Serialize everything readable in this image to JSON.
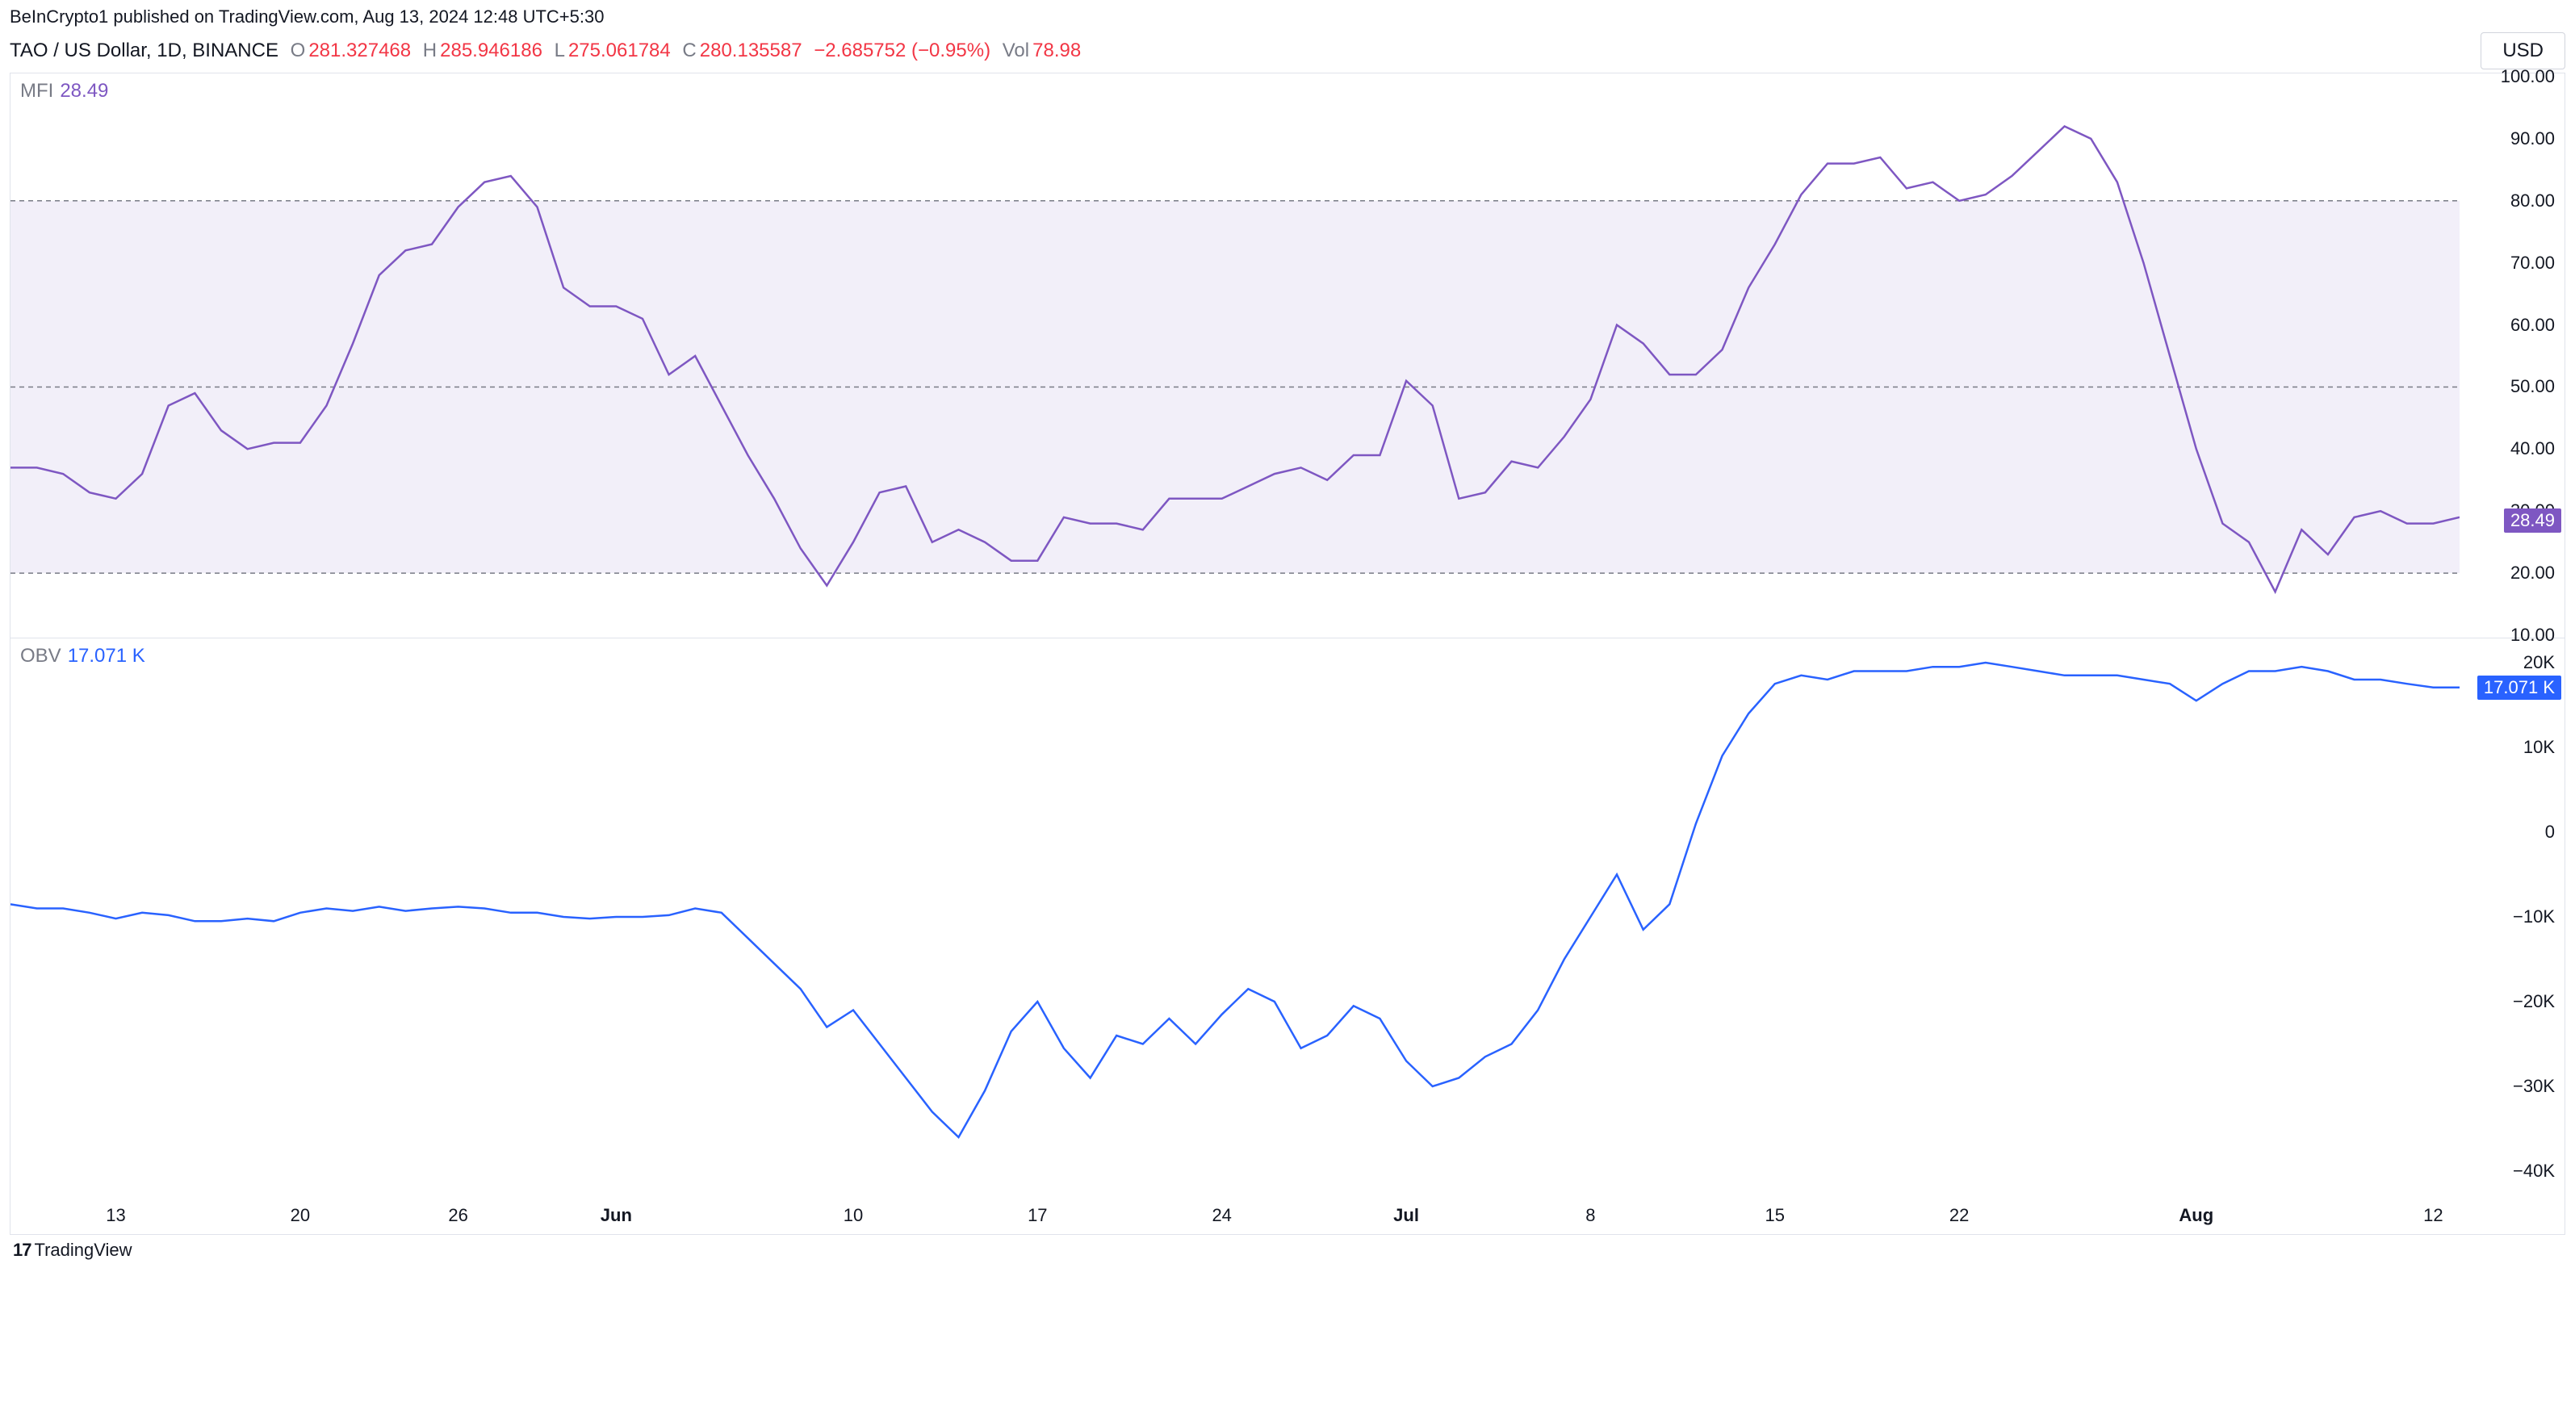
{
  "header": {
    "published_text": "BeInCrypto1 published on TradingView.com, Aug 13, 2024 12:48 UTC+5:30"
  },
  "ticker": {
    "symbol": "TAO / US Dollar, 1D, BINANCE",
    "open_label": "O",
    "open": "281.327468",
    "high_label": "H",
    "high": "285.946186",
    "low_label": "L",
    "low": "275.061784",
    "close_label": "C",
    "close": "280.135587",
    "change": "−2.685752 (−0.95%)",
    "vol_label": "Vol",
    "vol": "78.98",
    "currency": "USD",
    "ohlc_color": "#f23645",
    "label_color": "#787b86"
  },
  "mfi_pane": {
    "label": "MFI",
    "value": "28.49",
    "value_color": "#7e57c2",
    "line_color": "#7e57c2",
    "band_fill": "#f2eff9",
    "band_line_color": "#787b86",
    "y_min": 10,
    "y_max": 100,
    "y_ticks": [
      100,
      90,
      80,
      70,
      60,
      50,
      40,
      30,
      20,
      10
    ],
    "y_tick_labels": [
      "100.00",
      "90.00",
      "80.00",
      "70.00",
      "60.00",
      "50.00",
      "40.00",
      "30.00",
      "20.00",
      "10.00"
    ],
    "bands": {
      "upper": 80,
      "mid": 50,
      "lower": 20
    },
    "current_badge": "28.49",
    "series": [
      [
        0,
        37
      ],
      [
        1,
        37
      ],
      [
        2,
        36
      ],
      [
        3,
        33
      ],
      [
        4,
        32
      ],
      [
        5,
        36
      ],
      [
        6,
        47
      ],
      [
        7,
        49
      ],
      [
        8,
        43
      ],
      [
        9,
        40
      ],
      [
        10,
        41
      ],
      [
        11,
        41
      ],
      [
        12,
        47
      ],
      [
        13,
        57
      ],
      [
        14,
        68
      ],
      [
        15,
        72
      ],
      [
        16,
        73
      ],
      [
        17,
        79
      ],
      [
        18,
        83
      ],
      [
        19,
        84
      ],
      [
        20,
        79
      ],
      [
        21,
        66
      ],
      [
        22,
        63
      ],
      [
        23,
        63
      ],
      [
        24,
        61
      ],
      [
        25,
        52
      ],
      [
        26,
        55
      ],
      [
        27,
        47
      ],
      [
        28,
        39
      ],
      [
        29,
        32
      ],
      [
        30,
        24
      ],
      [
        31,
        18
      ],
      [
        32,
        25
      ],
      [
        33,
        33
      ],
      [
        34,
        34
      ],
      [
        35,
        25
      ],
      [
        36,
        27
      ],
      [
        37,
        25
      ],
      [
        38,
        22
      ],
      [
        39,
        22
      ],
      [
        40,
        29
      ],
      [
        41,
        28
      ],
      [
        42,
        28
      ],
      [
        43,
        27
      ],
      [
        44,
        32
      ],
      [
        45,
        32
      ],
      [
        46,
        32
      ],
      [
        47,
        34
      ],
      [
        48,
        36
      ],
      [
        49,
        37
      ],
      [
        50,
        35
      ],
      [
        51,
        39
      ],
      [
        52,
        39
      ],
      [
        53,
        51
      ],
      [
        54,
        47
      ],
      [
        55,
        32
      ],
      [
        56,
        33
      ],
      [
        57,
        38
      ],
      [
        58,
        37
      ],
      [
        59,
        42
      ],
      [
        60,
        48
      ],
      [
        61,
        60
      ],
      [
        62,
        57
      ],
      [
        63,
        52
      ],
      [
        64,
        52
      ],
      [
        65,
        56
      ],
      [
        66,
        66
      ],
      [
        67,
        73
      ],
      [
        68,
        81
      ],
      [
        69,
        86
      ],
      [
        70,
        86
      ],
      [
        71,
        87
      ],
      [
        72,
        82
      ],
      [
        73,
        83
      ],
      [
        74,
        80
      ],
      [
        75,
        81
      ],
      [
        76,
        84
      ],
      [
        77,
        88
      ],
      [
        78,
        92
      ],
      [
        79,
        90
      ],
      [
        80,
        83
      ],
      [
        81,
        70
      ],
      [
        82,
        55
      ],
      [
        83,
        40
      ],
      [
        84,
        28
      ],
      [
        85,
        25
      ],
      [
        86,
        17
      ],
      [
        87,
        27
      ],
      [
        88,
        23
      ],
      [
        89,
        29
      ],
      [
        90,
        30
      ],
      [
        91,
        28
      ],
      [
        92,
        28
      ],
      [
        93,
        29
      ]
    ]
  },
  "obv_pane": {
    "label": "OBV",
    "value": "17.071 K",
    "value_color": "#2962ff",
    "line_color": "#2962ff",
    "y_min": -40000,
    "y_max": 20000,
    "y_ticks": [
      20000,
      10000,
      0,
      -10000,
      -20000,
      -30000,
      -40000
    ],
    "y_tick_labels": [
      "20K",
      "10K",
      "0",
      "−10K",
      "−20K",
      "−30K",
      "−40K"
    ],
    "current_badge": "17.071 K",
    "series": [
      [
        0,
        -8500
      ],
      [
        1,
        -9000
      ],
      [
        2,
        -9000
      ],
      [
        3,
        -9500
      ],
      [
        4,
        -10200
      ],
      [
        5,
        -9500
      ],
      [
        6,
        -9800
      ],
      [
        7,
        -10500
      ],
      [
        8,
        -10500
      ],
      [
        9,
        -10200
      ],
      [
        10,
        -10500
      ],
      [
        11,
        -9500
      ],
      [
        12,
        -9000
      ],
      [
        13,
        -9300
      ],
      [
        14,
        -8800
      ],
      [
        15,
        -9300
      ],
      [
        16,
        -9000
      ],
      [
        17,
        -8800
      ],
      [
        18,
        -9000
      ],
      [
        19,
        -9500
      ],
      [
        20,
        -9500
      ],
      [
        21,
        -10000
      ],
      [
        22,
        -10200
      ],
      [
        23,
        -10000
      ],
      [
        24,
        -10000
      ],
      [
        25,
        -9800
      ],
      [
        26,
        -9000
      ],
      [
        27,
        -9500
      ],
      [
        28,
        -12500
      ],
      [
        29,
        -15500
      ],
      [
        30,
        -18500
      ],
      [
        31,
        -23000
      ],
      [
        32,
        -21000
      ],
      [
        33,
        -25000
      ],
      [
        34,
        -29000
      ],
      [
        35,
        -33000
      ],
      [
        36,
        -36000
      ],
      [
        37,
        -30500
      ],
      [
        38,
        -23500
      ],
      [
        39,
        -20000
      ],
      [
        40,
        -25500
      ],
      [
        41,
        -29000
      ],
      [
        42,
        -24000
      ],
      [
        43,
        -25000
      ],
      [
        44,
        -22000
      ],
      [
        45,
        -25000
      ],
      [
        46,
        -21500
      ],
      [
        47,
        -18500
      ],
      [
        48,
        -20000
      ],
      [
        49,
        -25500
      ],
      [
        50,
        -24000
      ],
      [
        51,
        -20500
      ],
      [
        52,
        -22000
      ],
      [
        53,
        -27000
      ],
      [
        54,
        -30000
      ],
      [
        55,
        -29000
      ],
      [
        56,
        -26500
      ],
      [
        57,
        -25000
      ],
      [
        58,
        -21000
      ],
      [
        59,
        -15000
      ],
      [
        60,
        -10000
      ],
      [
        61,
        -5000
      ],
      [
        62,
        -11500
      ],
      [
        63,
        -8500
      ],
      [
        64,
        1000
      ],
      [
        65,
        9000
      ],
      [
        66,
        14000
      ],
      [
        67,
        17500
      ],
      [
        68,
        18500
      ],
      [
        69,
        18000
      ],
      [
        70,
        19000
      ],
      [
        71,
        19000
      ],
      [
        72,
        19000
      ],
      [
        73,
        19500
      ],
      [
        74,
        19500
      ],
      [
        75,
        20000
      ],
      [
        76,
        19500
      ],
      [
        77,
        19000
      ],
      [
        78,
        18500
      ],
      [
        79,
        18500
      ],
      [
        80,
        18500
      ],
      [
        81,
        18000
      ],
      [
        82,
        17500
      ],
      [
        83,
        15500
      ],
      [
        84,
        17500
      ],
      [
        85,
        19000
      ],
      [
        86,
        19000
      ],
      [
        87,
        19500
      ],
      [
        88,
        19000
      ],
      [
        89,
        18000
      ],
      [
        90,
        18000
      ],
      [
        91,
        17500
      ],
      [
        92,
        17071
      ],
      [
        93,
        17071
      ]
    ]
  },
  "x_axis": {
    "ticks": [
      {
        "pos": 4,
        "label": "13",
        "bold": false
      },
      {
        "pos": 11,
        "label": "20",
        "bold": false
      },
      {
        "pos": 17,
        "label": "26",
        "bold": false
      },
      {
        "pos": 23,
        "label": "Jun",
        "bold": true
      },
      {
        "pos": 32,
        "label": "10",
        "bold": false
      },
      {
        "pos": 39,
        "label": "17",
        "bold": false
      },
      {
        "pos": 46,
        "label": "24",
        "bold": false
      },
      {
        "pos": 53,
        "label": "Jul",
        "bold": true
      },
      {
        "pos": 60,
        "label": "8",
        "bold": false
      },
      {
        "pos": 67,
        "label": "15",
        "bold": false
      },
      {
        "pos": 74,
        "label": "22",
        "bold": false
      },
      {
        "pos": 83,
        "label": "Aug",
        "bold": true
      },
      {
        "pos": 92,
        "label": "12",
        "bold": false
      }
    ],
    "max_index": 93
  },
  "footer": {
    "brand": "TradingView"
  },
  "layout": {
    "pane1_height": 700,
    "pane2_height": 690,
    "plot_right_margin": 130
  }
}
